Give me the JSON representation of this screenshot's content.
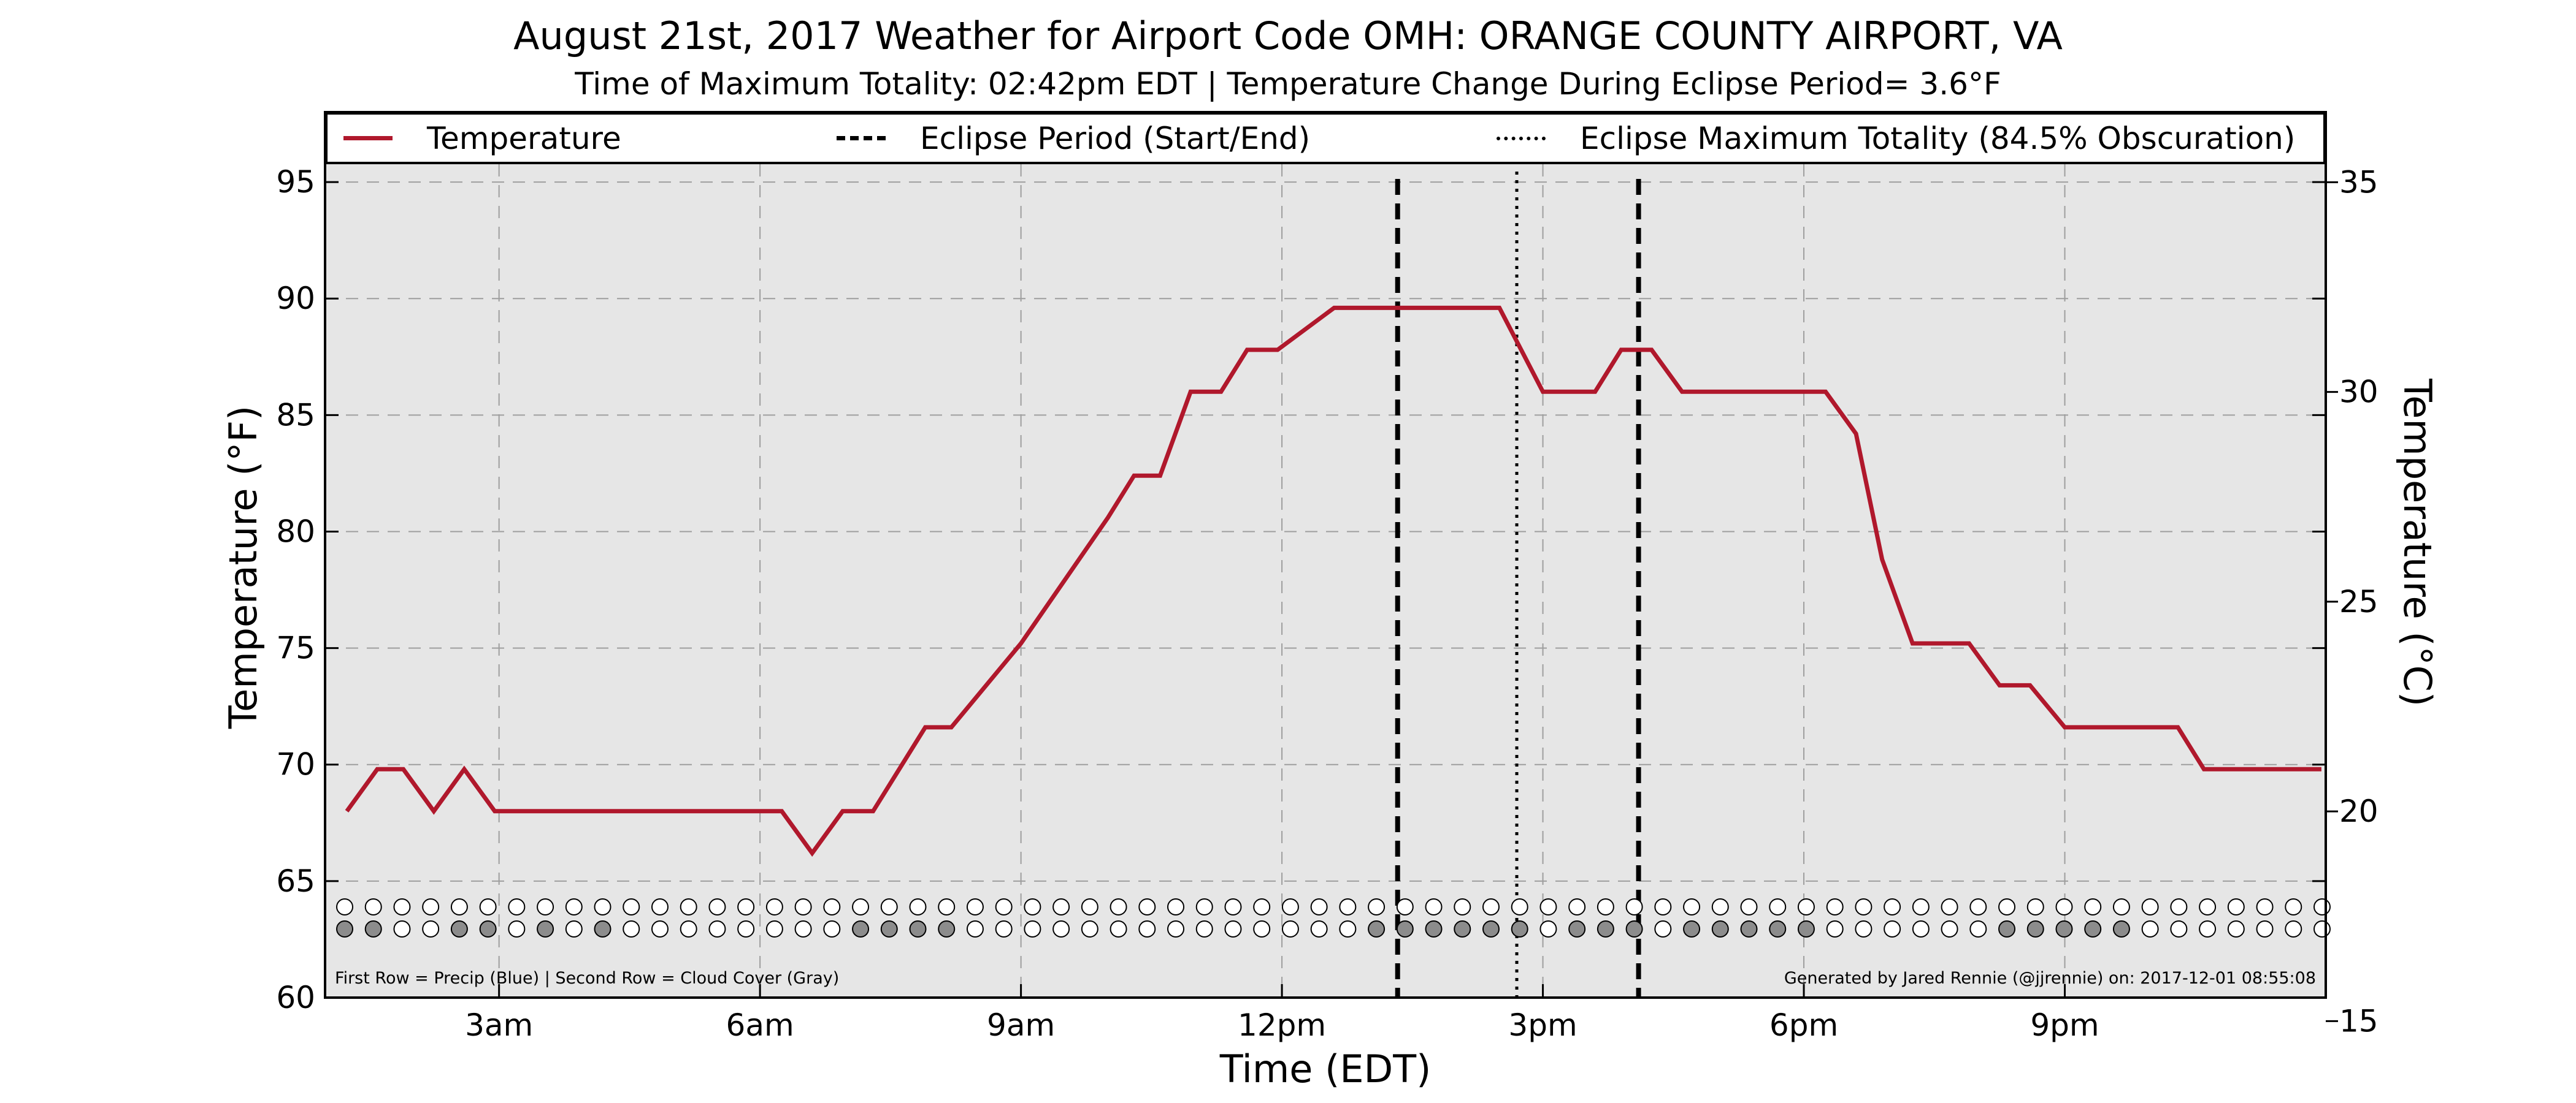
{
  "title": "August 21st, 2017 Weather for Airport Code OMH: ORANGE COUNTY AIRPORT, VA",
  "subtitle": "Time of Maximum Totality: 02:42pm EDT | Temperature Change During Eclipse Period= 3.6°F",
  "colors": {
    "temperature_line": "#b0182c",
    "plot_background": "#e6e6e6",
    "grid": "#9e9e9e",
    "cloud_filled": "#8c8c8c",
    "cloud_empty": "#ffffff"
  },
  "legend": {
    "items": [
      {
        "label": "Temperature",
        "style": "solid",
        "color": "#b0182c"
      },
      {
        "label": "Eclipse Period (Start/End)",
        "style": "dashed",
        "color": "#000000"
      },
      {
        "label": "Eclipse Maximum Totality (84.5% Obscuration)",
        "style": "dotted",
        "color": "#000000"
      }
    ]
  },
  "footer": {
    "left": "First Row = Precip (Blue) | Second Row = Cloud Cover (Gray)",
    "right": "Generated by Jared Rennie (@jjrennie) on: 2017-12-01 08:55:08"
  },
  "chart_data": {
    "type": "line",
    "xlabel": "Time (EDT)",
    "ylabel": "Temperature ($^\\circ$F)",
    "ylabel_display": "Temperature (°F)",
    "y2label": "Temperature ($^\\circ$C)",
    "y2label_display": "Temperature (°C)",
    "xlim": [
      1.0,
      24.0
    ],
    "ylim": [
      60,
      98
    ],
    "y2lim": [
      15.56,
      36.67
    ],
    "x_ticks": [
      {
        "value": 3,
        "label": "3am"
      },
      {
        "value": 6,
        "label": "6am"
      },
      {
        "value": 9,
        "label": "9am"
      },
      {
        "value": 12,
        "label": "12pm"
      },
      {
        "value": 15,
        "label": "3pm"
      },
      {
        "value": 18,
        "label": "6pm"
      },
      {
        "value": 21,
        "label": "9pm"
      }
    ],
    "y_ticks": [
      60,
      65,
      70,
      75,
      80,
      85,
      90,
      95
    ],
    "y2_ticks": [
      15,
      20,
      25,
      30,
      35
    ],
    "grid": true,
    "legend_position": "top",
    "eclipse_start": 13.33,
    "eclipse_end": 16.1,
    "eclipse_max": 14.7,
    "series": [
      {
        "name": "Temperature",
        "x": [
          1.25,
          1.6,
          1.9,
          2.25,
          2.6,
          2.95,
          3.5,
          4.5,
          5.5,
          6.25,
          6.6,
          6.95,
          7.3,
          7.9,
          8.2,
          9.0,
          10.0,
          10.3,
          10.6,
          10.95,
          11.3,
          11.6,
          11.95,
          12.6,
          13.0,
          13.5,
          14.0,
          14.5,
          15.0,
          15.6,
          15.9,
          16.25,
          16.6,
          17.0,
          17.6,
          18.0,
          18.25,
          18.6,
          18.9,
          19.25,
          19.6,
          19.9,
          20.25,
          20.6,
          21.0,
          21.5,
          22.0,
          22.3,
          22.6,
          23.0,
          23.5,
          23.95
        ],
        "y": [
          68.0,
          69.8,
          69.8,
          68.0,
          69.8,
          68.0,
          68.0,
          68.0,
          68.0,
          68.0,
          66.2,
          68.0,
          68.0,
          71.6,
          71.6,
          75.2,
          80.6,
          82.4,
          82.4,
          86.0,
          86.0,
          87.8,
          87.8,
          89.6,
          89.6,
          89.6,
          89.6,
          89.6,
          86.0,
          86.0,
          87.8,
          87.8,
          86.0,
          86.0,
          86.0,
          86.0,
          86.0,
          84.2,
          78.8,
          75.2,
          75.2,
          75.2,
          73.4,
          73.4,
          71.6,
          71.6,
          71.6,
          71.6,
          69.8,
          69.8,
          69.8,
          69.8
        ]
      }
    ],
    "precip_row": [
      0,
      0,
      0,
      0,
      0,
      0,
      0,
      0,
      0,
      0,
      0,
      0,
      0,
      0,
      0,
      0,
      0,
      0,
      0,
      0,
      0,
      0,
      0,
      0,
      0,
      0,
      0,
      0,
      0,
      0,
      0,
      0,
      0,
      0,
      0,
      0,
      0,
      0,
      0,
      0,
      0,
      0,
      0,
      0,
      0,
      0,
      0,
      0,
      0,
      0,
      0,
      0,
      0,
      0,
      0,
      0,
      0,
      0,
      0,
      0,
      0,
      0,
      0,
      0,
      0,
      0,
      0,
      0,
      0,
      0
    ],
    "cloud_row": [
      1,
      1,
      0,
      0,
      1,
      1,
      0,
      1,
      0,
      1,
      0,
      0,
      0,
      0,
      0,
      0,
      0,
      0,
      1,
      1,
      1,
      1,
      0,
      0,
      0,
      0,
      0,
      0,
      0,
      0,
      0,
      0,
      0,
      0,
      0,
      0,
      1,
      1,
      1,
      1,
      1,
      1,
      0,
      1,
      1,
      1,
      0,
      1,
      1,
      1,
      1,
      1,
      0,
      0,
      0,
      0,
      0,
      0,
      1,
      1,
      1,
      1,
      1,
      0,
      0,
      0,
      0,
      0,
      0,
      0
    ]
  }
}
